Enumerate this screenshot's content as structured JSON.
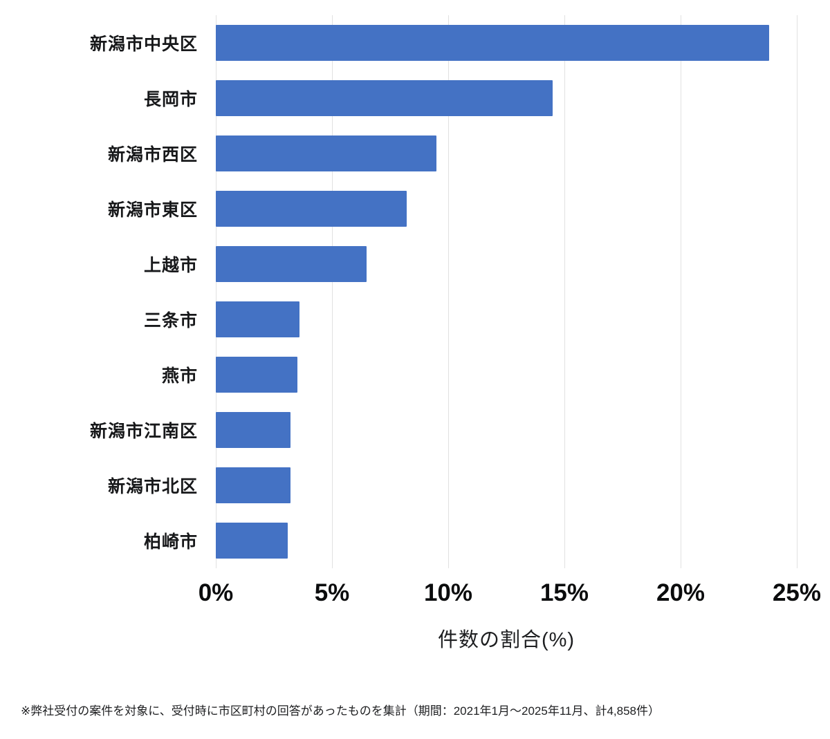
{
  "chart_data": {
    "type": "bar",
    "orientation": "horizontal",
    "categories": [
      "新潟市中央区",
      "長岡市",
      "新潟市西区",
      "新潟市東区",
      "上越市",
      "三条市",
      "燕市",
      "新潟市江南区",
      "新潟市北区",
      "柏崎市"
    ],
    "values": [
      23.8,
      14.5,
      9.5,
      8.2,
      6.5,
      3.6,
      3.5,
      3.2,
      3.2,
      3.1
    ],
    "title": "",
    "xlabel": "件数の割合(%)",
    "ylabel": "",
    "x_ticks": [
      "0%",
      "5%",
      "10%",
      "15%",
      "20%",
      "25%"
    ],
    "xlim": [
      0,
      25
    ],
    "grid": true,
    "legend": "none",
    "bar_color": "#4472C4",
    "grid_color": "#e1e1e1"
  },
  "footnote": "※弊社受付の案件を対象に、受付時に市区町村の回答があったものを集計（期間：2021年1月～2025年11月、計4,858件）"
}
